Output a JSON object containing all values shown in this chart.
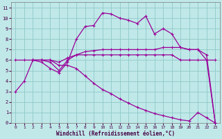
{
  "xlabel": "Windchill (Refroidissement éolien,°C)",
  "bg_color": "#c0e8e8",
  "grid_color": "#90c8c8",
  "line_color": "#990099",
  "xlim": [
    -0.5,
    23.5
  ],
  "ylim": [
    0,
    11.5
  ],
  "xticks": [
    0,
    1,
    2,
    3,
    4,
    5,
    6,
    7,
    8,
    9,
    10,
    11,
    12,
    13,
    14,
    15,
    16,
    17,
    18,
    19,
    20,
    21,
    22,
    23
  ],
  "yticks": [
    0,
    1,
    2,
    3,
    4,
    5,
    6,
    7,
    8,
    9,
    10,
    11
  ],
  "series1_x": [
    0,
    1,
    2,
    3,
    4,
    5,
    6,
    7,
    8,
    9,
    10,
    11,
    12,
    13,
    14,
    15,
    16,
    17,
    18,
    19,
    20,
    21,
    22,
    23
  ],
  "series1_y": [
    3.0,
    4.0,
    6.0,
    5.8,
    5.2,
    4.8,
    5.8,
    8.0,
    9.2,
    9.3,
    10.5,
    10.4,
    10.0,
    9.8,
    9.5,
    10.2,
    8.5,
    9.0,
    8.5,
    7.2,
    7.0,
    7.0,
    6.5,
    0.0
  ],
  "series2_x": [
    2,
    3,
    4,
    5,
    6,
    7,
    8,
    9,
    10,
    11,
    12,
    13,
    14,
    15,
    16,
    17,
    18,
    19,
    20,
    21,
    22,
    23
  ],
  "series2_y": [
    6.0,
    6.0,
    6.0,
    5.8,
    6.2,
    6.5,
    6.8,
    6.9,
    7.0,
    7.0,
    7.0,
    7.0,
    7.0,
    7.0,
    7.0,
    7.2,
    7.2,
    7.2,
    7.0,
    7.0,
    6.0,
    0.0
  ],
  "series3_x": [
    0,
    1,
    2,
    3,
    4,
    5,
    6,
    7,
    8,
    9,
    10,
    11,
    12,
    13,
    14,
    15,
    16,
    17,
    18,
    19,
    20,
    21,
    22,
    23
  ],
  "series3_y": [
    6.0,
    6.0,
    6.0,
    6.0,
    5.8,
    5.0,
    6.0,
    6.5,
    6.5,
    6.5,
    6.5,
    6.5,
    6.5,
    6.5,
    6.5,
    6.5,
    6.5,
    6.5,
    6.5,
    6.0,
    6.0,
    6.0,
    6.0,
    6.0
  ],
  "series4_x": [
    2,
    3,
    4,
    5,
    6,
    7,
    8,
    9,
    10,
    11,
    12,
    13,
    14,
    15,
    16,
    17,
    18,
    19,
    20,
    21,
    22,
    23
  ],
  "series4_y": [
    6.0,
    6.0,
    6.0,
    5.5,
    5.5,
    5.2,
    4.5,
    3.8,
    3.2,
    2.8,
    2.3,
    1.9,
    1.5,
    1.2,
    0.9,
    0.7,
    0.5,
    0.3,
    0.2,
    1.0,
    0.5,
    0.0
  ]
}
